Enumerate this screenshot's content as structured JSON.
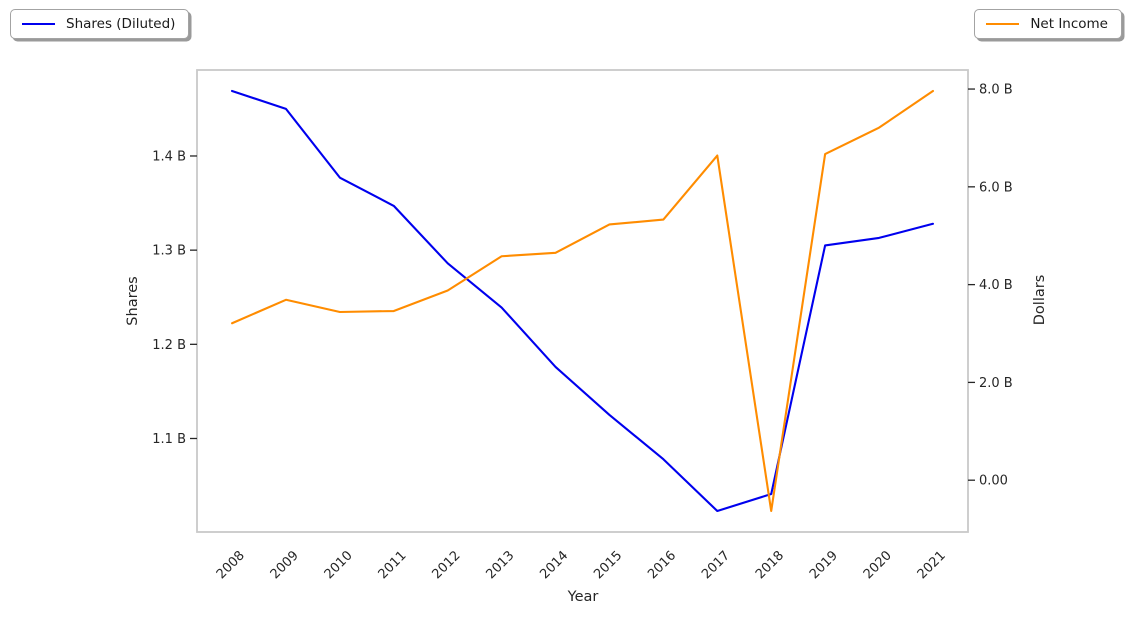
{
  "figure": {
    "background": "#ffffff",
    "legend_left": {
      "label": "Shares (Diluted)",
      "color": "#0000ee"
    },
    "legend_right": {
      "label": "Net Income",
      "color": "#ff8c00"
    }
  },
  "chart_data": {
    "type": "line",
    "title": "",
    "xlabel": "Year",
    "x": [
      2008,
      2009,
      2010,
      2011,
      2012,
      2013,
      2014,
      2015,
      2016,
      2017,
      2018,
      2019,
      2020,
      2021
    ],
    "x_tick_labels": [
      "2008",
      "2009",
      "2010",
      "2011",
      "2012",
      "2013",
      "2014",
      "2015",
      "2016",
      "2017",
      "2018",
      "2019",
      "2020",
      "2021"
    ],
    "units": "billions",
    "series": [
      {
        "name": "Shares (Diluted)",
        "axis": "left",
        "color": "#0000ee",
        "values": [
          1.469,
          1.45,
          1.377,
          1.347,
          1.286,
          1.239,
          1.176,
          1.125,
          1.078,
          1.023,
          1.041,
          1.305,
          1.313,
          1.328
        ]
      },
      {
        "name": "Net Income",
        "axis": "right",
        "color": "#ff8c00",
        "values": [
          3.21,
          3.69,
          3.44,
          3.46,
          3.88,
          4.58,
          4.65,
          5.23,
          5.33,
          6.64,
          -0.63,
          6.67,
          7.21,
          7.96
        ]
      }
    ],
    "left_axis": {
      "label": "Shares",
      "tick_values": [
        1.1,
        1.2,
        1.3,
        1.4
      ],
      "tick_labels": [
        "1.1 B",
        "1.2 B",
        "1.3 B",
        "1.4 B"
      ]
    },
    "right_axis": {
      "label": "Dollars",
      "tick_values": [
        0,
        2,
        4,
        6,
        8
      ],
      "tick_labels": [
        "0.00",
        "2.0 B",
        "4.0 B",
        "6.0 B",
        "8.0 B"
      ]
    },
    "grid": "off",
    "frame_color": "#c9c9c9",
    "tick_color": "#262626",
    "margin_fraction": 0.05
  }
}
